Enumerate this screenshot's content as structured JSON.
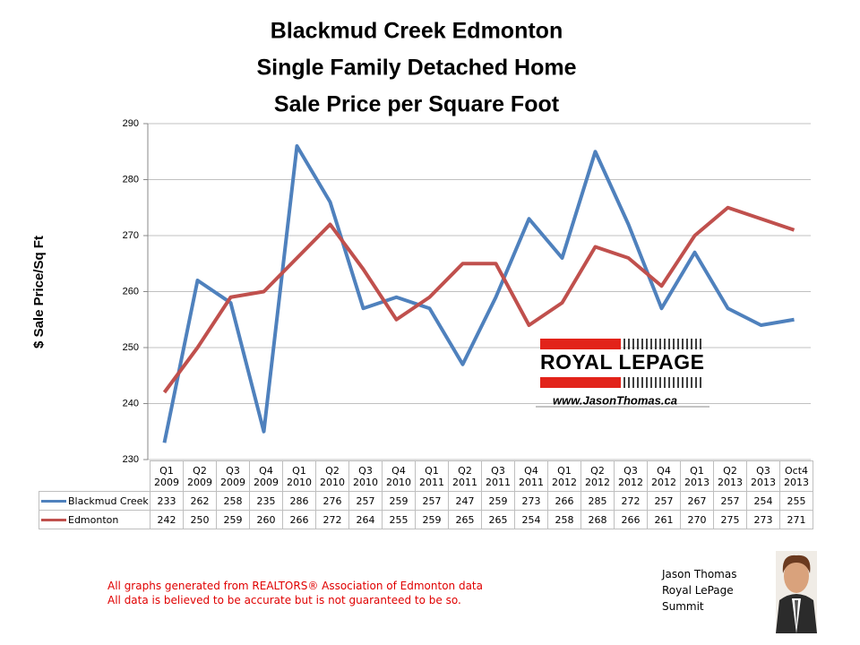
{
  "chart_data": {
    "type": "line",
    "title": [
      "Blackmud Creek Edmonton",
      "Single Family Detached Home",
      "Sale Price per Square Foot"
    ],
    "y_label": "$ Sale Price/Sq Ft",
    "categories": [
      "Q1 2009",
      "Q2 2009",
      "Q3 2009",
      "Q4 2009",
      "Q1 2010",
      "Q2 2010",
      "Q3 2010",
      "Q4 2010",
      "Q1 2011",
      "Q2 2011",
      "Q3 2011",
      "Q4 2011",
      "Q1 2012",
      "Q2 2012",
      "Q3 2012",
      "Q4 2012",
      "Q1 2013",
      "Q2 2013",
      "Q3 2013",
      "Oct4 2013"
    ],
    "series": [
      {
        "name": "Blackmud Creek",
        "color": "#4f81bd",
        "values": [
          233,
          262,
          258,
          235,
          286,
          276,
          257,
          259,
          257,
          247,
          259,
          273,
          266,
          285,
          272,
          257,
          267,
          257,
          254,
          255
        ]
      },
      {
        "name": "Edmonton",
        "color": "#c0504d",
        "values": [
          242,
          250,
          259,
          260,
          266,
          272,
          264,
          255,
          259,
          265,
          265,
          254,
          258,
          268,
          266,
          261,
          270,
          275,
          273,
          271
        ]
      }
    ],
    "ylim": [
      230,
      290
    ],
    "yticks": [
      230,
      240,
      250,
      260,
      270,
      280,
      290
    ],
    "grid": true
  },
  "logo": {
    "brand": "ROYAL LEPAGE",
    "url": "www.JasonThomas.ca"
  },
  "footnotes": [
    "All graphs generated from REALTORS® Association of Edmonton data",
    "All data is believed to be accurate but is not guaranteed to be so."
  ],
  "author": [
    "Jason Thomas",
    "Royal LePage",
    "Summit"
  ]
}
